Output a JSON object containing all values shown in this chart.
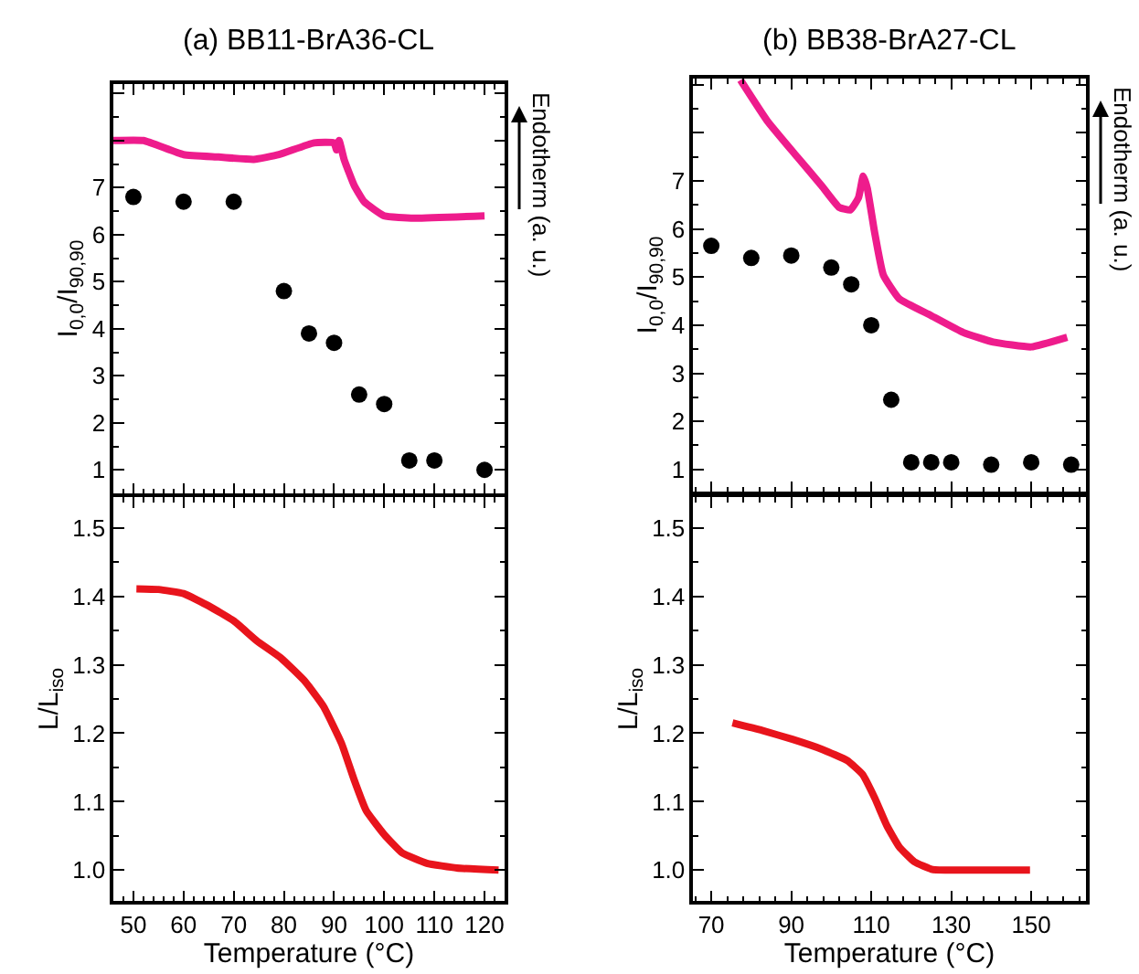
{
  "chart_data": [
    {
      "type": "scatter",
      "title": "(a) BB11-BrA36-CL",
      "ylabel": "I$_{0,0}$/I$_{90,90}$",
      "y2label": "Endotherm (a. u.)",
      "xlim": [
        46,
        124
      ],
      "xticks": [
        50,
        60,
        70,
        80,
        90,
        100,
        110,
        120
      ],
      "ylim": [
        0.5,
        9.2
      ],
      "yticks": [
        1,
        2,
        3,
        4,
        5,
        6,
        7,
        {
          "value": 8,
          "label": null
        },
        {
          "value": 9,
          "label": null
        }
      ],
      "tick_labels": "y",
      "series": [
        {
          "type": "scatter",
          "marker": "circle",
          "color": "#000000",
          "x": [
            50,
            60,
            70,
            80,
            85,
            90,
            95,
            100,
            105,
            110,
            120
          ],
          "values": [
            6.8,
            6.7,
            6.7,
            4.8,
            3.9,
            3.7,
            2.6,
            2.4,
            1.2,
            1.2,
            1.0
          ]
        },
        {
          "type": "line",
          "color": "#ee1c8c",
          "x": [
            46,
            52,
            60,
            67,
            74,
            79,
            86,
            90,
            90.5,
            91,
            92,
            94,
            96,
            100,
            106,
            120
          ],
          "values": [
            8.0,
            8.0,
            7.7,
            7.65,
            7.6,
            7.7,
            7.95,
            7.95,
            7.8,
            8.0,
            7.6,
            7.05,
            6.7,
            6.4,
            6.35,
            6.4
          ]
        }
      ]
    },
    {
      "type": "line",
      "xlabel": "Temperature (°C)",
      "ylabel": "L/L$_{iso}$",
      "xlim": [
        46,
        124
      ],
      "xticks": [
        50,
        60,
        70,
        80,
        90,
        100,
        110,
        120
      ],
      "ylim": [
        0.955,
        1.545
      ],
      "yticks": [
        {
          "value": 1.0,
          "label": "1.0"
        },
        1.1,
        1.2,
        1.3,
        1.4,
        1.5
      ],
      "series": [
        {
          "color": "#e8141c",
          "x": [
            50.6,
            55,
            60,
            65,
            70,
            74.6,
            79.4,
            84.3,
            87.9,
            91.5,
            94,
            96.4,
            100,
            103.6,
            108.5,
            114.5,
            122.8
          ],
          "values": [
            1.411,
            1.41,
            1.404,
            1.386,
            1.364,
            1.335,
            1.31,
            1.275,
            1.239,
            1.185,
            1.132,
            1.087,
            1.052,
            1.025,
            1.01,
            1.003,
            1.0
          ]
        }
      ]
    },
    {
      "type": "scatter",
      "title": "(b) BB38-BrA27-CL",
      "ylabel": "I$_{0,0}$/I$_{90,90}$",
      "y2label": "Endotherm (a. u.)",
      "xlim": [
        65.4,
        163.7
      ],
      "xticks": [
        70,
        90,
        110,
        130,
        150
      ],
      "ylim": [
        0.54,
        9.13
      ],
      "yticks": [
        1,
        2,
        3,
        4,
        5,
        6,
        7,
        {
          "value": 8,
          "label": null
        },
        {
          "value": 9,
          "label": null
        }
      ],
      "tick_labels": "y",
      "series": [
        {
          "type": "scatter",
          "marker": "circle",
          "color": "#000000",
          "x": [
            70,
            80,
            90,
            100,
            105,
            110,
            115,
            120,
            125,
            130,
            140,
            150,
            160
          ],
          "values": [
            5.65,
            5.4,
            5.45,
            5.2,
            4.85,
            4.0,
            2.45,
            1.15,
            1.15,
            1.15,
            1.1,
            1.15,
            1.1
          ]
        },
        {
          "type": "line",
          "color": "#ee1c8c",
          "x": [
            77.3,
            84,
            91.5,
            97.6,
            102,
            104.8,
            106.8,
            108,
            109,
            110.8,
            113,
            117,
            125,
            133,
            140.5,
            150,
            159
          ],
          "values": [
            9.1,
            8.25,
            7.5,
            6.9,
            6.45,
            6.4,
            6.65,
            7.1,
            6.85,
            5.95,
            5.05,
            4.55,
            4.2,
            3.85,
            3.65,
            3.55,
            3.75
          ]
        }
      ]
    },
    {
      "type": "line",
      "xlabel": "Temperature (°C)",
      "ylabel": "L/L$_{iso}$",
      "xlim": [
        65.4,
        163.7
      ],
      "xticks": [
        70,
        90,
        110,
        130,
        150
      ],
      "ylim": [
        0.955,
        1.545
      ],
      "yticks": [
        {
          "value": 1.0,
          "label": "1.0"
        },
        1.1,
        1.2,
        1.3,
        1.4,
        1.5
      ],
      "series": [
        {
          "color": "#e8141c",
          "x": [
            75.3,
            82.7,
            90.3,
            97.9,
            104,
            107.8,
            110.9,
            113.9,
            117,
            120.8,
            125.3,
            131.4,
            140.6,
            149.7
          ],
          "values": [
            1.215,
            1.204,
            1.191,
            1.176,
            1.16,
            1.14,
            1.105,
            1.065,
            1.034,
            1.012,
            1.001,
            1.0,
            1.0,
            1.0
          ]
        }
      ]
    }
  ]
}
